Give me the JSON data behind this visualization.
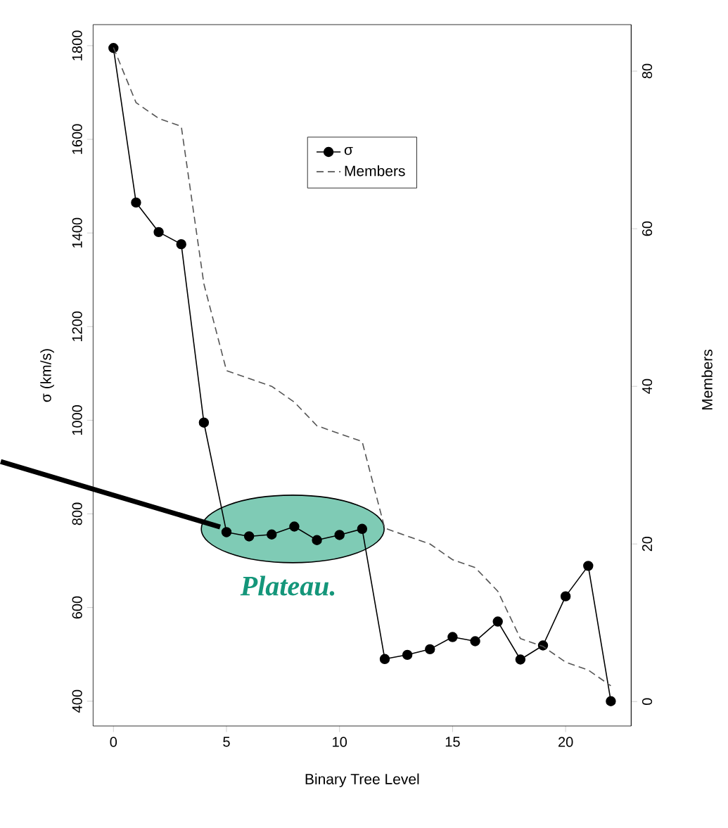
{
  "chart_data": {
    "type": "line",
    "xlabel": "Binary Tree Level",
    "ylabel": "σ (km/s)",
    "y2label": "Members",
    "x": [
      0,
      1,
      2,
      3,
      4,
      5,
      6,
      7,
      8,
      9,
      10,
      11,
      12,
      13,
      14,
      15,
      16,
      17,
      18,
      19,
      20,
      21,
      22
    ],
    "xlim": [
      -0.9,
      22.9
    ],
    "ylim": [
      347,
      1845
    ],
    "y2lim": [
      -3.1,
      85.9
    ],
    "xticks": [
      0,
      5,
      10,
      15,
      20
    ],
    "yticks": [
      400,
      600,
      800,
      1000,
      1200,
      1400,
      1600,
      1800
    ],
    "y2ticks": [
      0,
      20,
      40,
      60,
      80
    ],
    "legend": "top",
    "series": [
      {
        "name": "σ",
        "color": "#000000",
        "marker": "circle",
        "line_style": "solid",
        "values": [
          1795,
          1465,
          1402,
          1376,
          995,
          761,
          752,
          756,
          773,
          744,
          755,
          768,
          490,
          499,
          511,
          537,
          528,
          570,
          489,
          519,
          624,
          689,
          400
        ]
      },
      {
        "name": "Members",
        "color": "#555555",
        "marker": "none",
        "line_style": "dashed",
        "axis": "y2",
        "values": [
          83,
          76,
          74,
          73,
          53,
          42,
          41,
          40,
          38,
          35,
          34,
          33,
          22,
          21,
          20,
          18,
          17,
          14,
          8,
          7,
          5,
          4,
          2
        ]
      }
    ],
    "annotations": [
      {
        "text": "Plateau.",
        "x": 5,
        "y": 761
      }
    ]
  }
}
